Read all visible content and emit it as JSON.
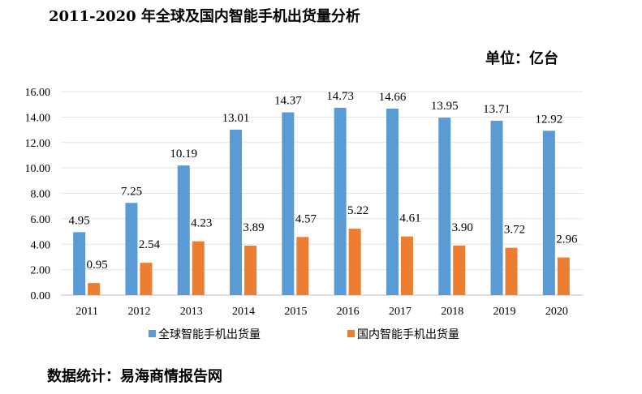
{
  "header": {
    "title": "2011-2020 年全球及国内智能手机出货量分析",
    "unit": "单位：亿台"
  },
  "footer": {
    "source": "数据统计：易海商情报告网"
  },
  "chart_data": {
    "type": "bar",
    "categories": [
      "2011",
      "2012",
      "2013",
      "2014",
      "2015",
      "2016",
      "2017",
      "2018",
      "2019",
      "2020"
    ],
    "series": [
      {
        "name": "全球智能手机出货量",
        "color": "#5b9bd5",
        "values": [
          4.95,
          7.25,
          10.19,
          13.01,
          14.37,
          14.73,
          14.66,
          13.95,
          13.71,
          12.92
        ]
      },
      {
        "name": "国内智能手机出货量",
        "color": "#ed7d31",
        "values": [
          0.95,
          2.54,
          4.23,
          3.89,
          4.57,
          5.22,
          4.61,
          3.9,
          3.72,
          2.96
        ]
      }
    ],
    "yticks": [
      "0.00",
      "2.00",
      "4.00",
      "6.00",
      "8.00",
      "10.00",
      "12.00",
      "14.00",
      "16.00"
    ],
    "ylim": [
      0,
      16
    ],
    "grid": true,
    "legend": "bottom",
    "data_labels": true
  }
}
